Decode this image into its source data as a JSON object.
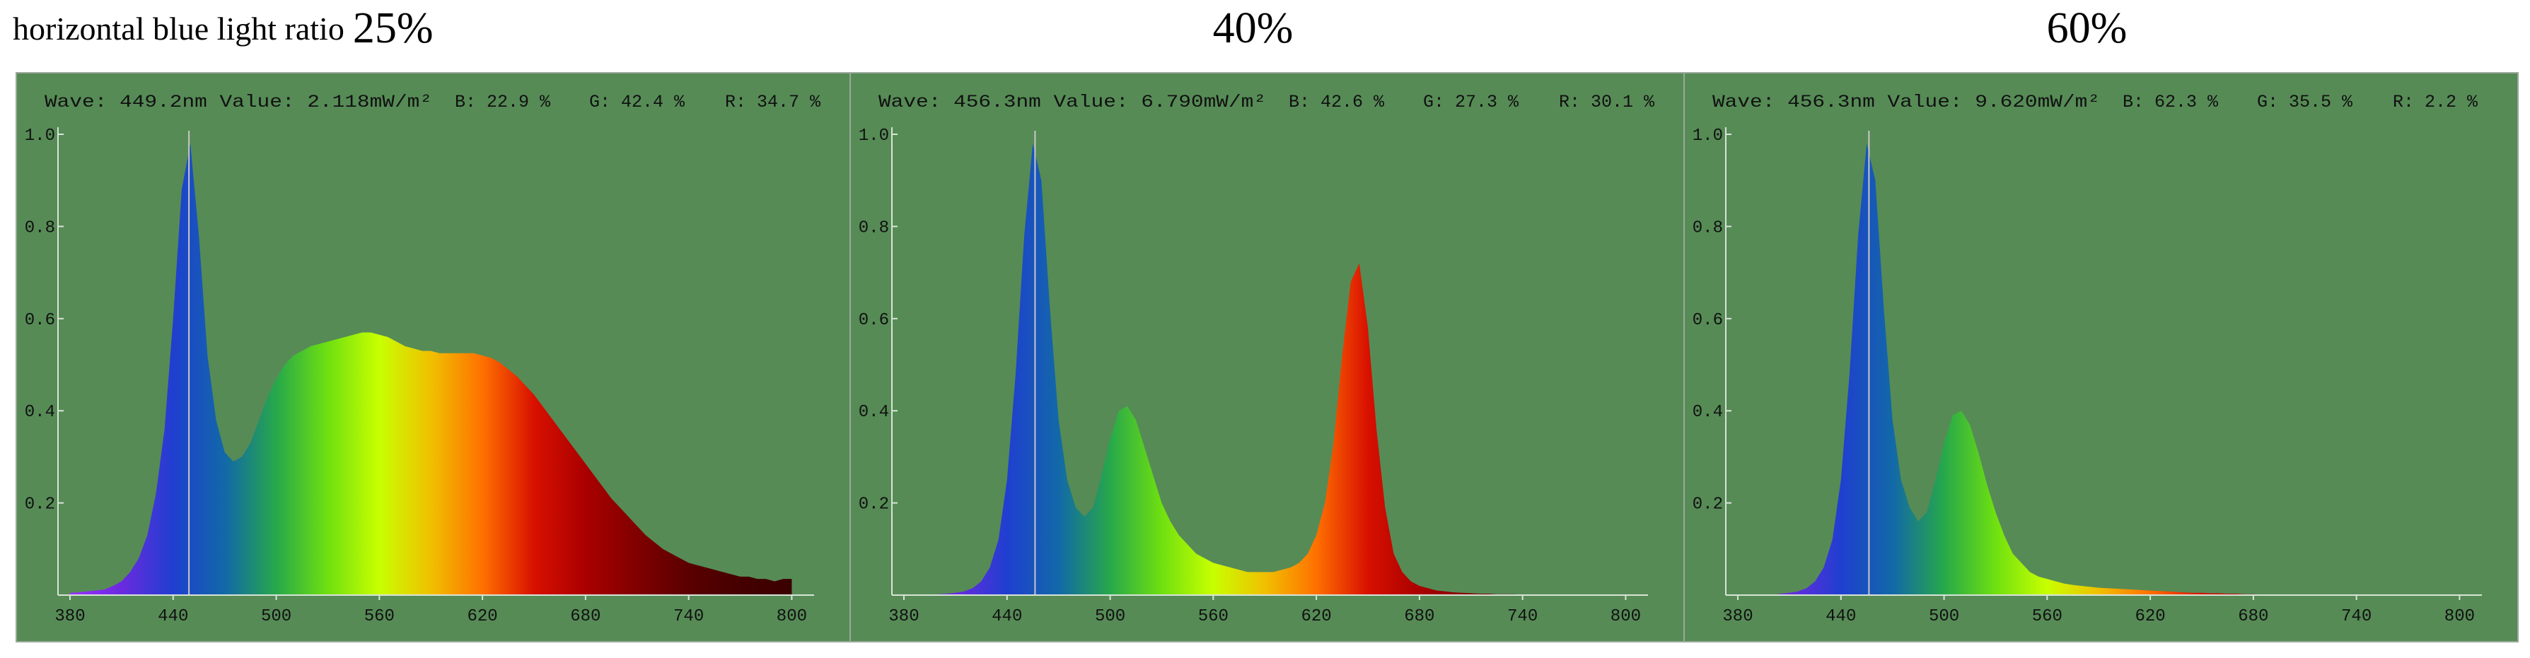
{
  "heading": "horizontal blue light ratio",
  "background": "#568b56",
  "axis_color": "#d8e4d8",
  "spectrum_colors": [
    "#9b30ff",
    "#6a2adf",
    "#1f3fd0",
    "#1268a8",
    "#27a84a",
    "#6fe010",
    "#c8ff00",
    "#f0c000",
    "#ff7000",
    "#d81000",
    "#aa0000",
    "#800000",
    "#5a0000",
    "#450000",
    "#3a0000"
  ],
  "chart_data": [
    {
      "type": "area",
      "title": "25%",
      "info": [
        "Wave: 449.2nm Value: 2.118mW/m²",
        "B: 22.9 %",
        "G: 42.4 %",
        "R: 34.7 %"
      ],
      "marker_x": 449.2,
      "xlim": [
        373,
        813
      ],
      "ylim": [
        0,
        1.0
      ],
      "xticks": [
        380,
        440,
        500,
        560,
        620,
        680,
        740,
        800
      ],
      "yticks": [
        0.2,
        0.4,
        0.6,
        0.8,
        {
          "value": 1,
          "label": "1.0"
        }
      ],
      "x": [
        380,
        385,
        390,
        395,
        400,
        405,
        410,
        415,
        420,
        425,
        430,
        435,
        440,
        445,
        450,
        455,
        460,
        465,
        470,
        475,
        480,
        485,
        490,
        495,
        500,
        505,
        510,
        515,
        520,
        525,
        530,
        535,
        540,
        545,
        550,
        555,
        560,
        565,
        570,
        575,
        580,
        585,
        590,
        595,
        600,
        605,
        610,
        615,
        620,
        625,
        630,
        635,
        640,
        645,
        650,
        655,
        660,
        665,
        670,
        675,
        680,
        685,
        690,
        695,
        700,
        705,
        710,
        715,
        720,
        725,
        730,
        735,
        740,
        745,
        750,
        755,
        760,
        765,
        770,
        775,
        780,
        785,
        790,
        795,
        800
      ],
      "values": [
        0.005,
        0.006,
        0.008,
        0.01,
        0.012,
        0.02,
        0.03,
        0.05,
        0.08,
        0.13,
        0.22,
        0.36,
        0.6,
        0.88,
        0.98,
        0.78,
        0.52,
        0.38,
        0.31,
        0.29,
        0.3,
        0.33,
        0.38,
        0.43,
        0.47,
        0.5,
        0.52,
        0.53,
        0.54,
        0.545,
        0.55,
        0.555,
        0.56,
        0.565,
        0.57,
        0.57,
        0.565,
        0.56,
        0.55,
        0.54,
        0.535,
        0.53,
        0.53,
        0.525,
        0.525,
        0.525,
        0.525,
        0.525,
        0.52,
        0.515,
        0.505,
        0.49,
        0.475,
        0.455,
        0.435,
        0.41,
        0.385,
        0.36,
        0.335,
        0.31,
        0.285,
        0.26,
        0.235,
        0.21,
        0.19,
        0.17,
        0.15,
        0.13,
        0.115,
        0.1,
        0.09,
        0.08,
        0.07,
        0.065,
        0.06,
        0.055,
        0.05,
        0.045,
        0.04,
        0.04,
        0.035,
        0.035,
        0.03,
        0.035,
        0.035
      ]
    },
    {
      "type": "area",
      "title": "40%",
      "info": [
        "Wave: 456.3nm Value: 6.790mW/m²",
        "B: 42.6 %",
        "G: 27.3 %",
        "R: 30.1 %"
      ],
      "marker_x": 456.3,
      "xlim": [
        373,
        813
      ],
      "ylim": [
        0,
        1.0
      ],
      "xticks": [
        380,
        440,
        500,
        560,
        620,
        680,
        740,
        800
      ],
      "yticks": [
        0.2,
        0.4,
        0.6,
        0.8,
        {
          "value": 1,
          "label": "1.0"
        }
      ],
      "x": [
        380,
        385,
        390,
        395,
        400,
        405,
        410,
        415,
        420,
        425,
        430,
        435,
        440,
        445,
        450,
        455,
        460,
        465,
        470,
        475,
        480,
        485,
        490,
        495,
        500,
        505,
        510,
        515,
        520,
        525,
        530,
        535,
        540,
        545,
        550,
        555,
        560,
        565,
        570,
        575,
        580,
        585,
        590,
        595,
        600,
        605,
        610,
        615,
        620,
        625,
        630,
        635,
        640,
        645,
        650,
        655,
        660,
        665,
        670,
        675,
        680,
        685,
        690,
        695,
        700,
        705,
        710,
        715,
        720,
        725,
        730,
        735,
        740,
        745,
        750,
        755,
        760,
        765,
        770,
        775,
        780,
        785,
        790,
        795,
        800
      ],
      "values": [
        0,
        0,
        0,
        0,
        0.002,
        0.003,
        0.005,
        0.008,
        0.015,
        0.03,
        0.06,
        0.12,
        0.25,
        0.48,
        0.78,
        0.98,
        0.9,
        0.62,
        0.38,
        0.25,
        0.19,
        0.17,
        0.19,
        0.26,
        0.34,
        0.4,
        0.41,
        0.38,
        0.32,
        0.26,
        0.2,
        0.16,
        0.13,
        0.11,
        0.09,
        0.08,
        0.07,
        0.065,
        0.06,
        0.055,
        0.05,
        0.05,
        0.05,
        0.05,
        0.055,
        0.06,
        0.07,
        0.09,
        0.13,
        0.2,
        0.33,
        0.52,
        0.68,
        0.72,
        0.58,
        0.36,
        0.19,
        0.09,
        0.05,
        0.03,
        0.02,
        0.015,
        0.01,
        0.008,
        0.006,
        0.005,
        0.004,
        0.003,
        0.003,
        0.002,
        0.002,
        0.002,
        0.001,
        0.001,
        0.001,
        0,
        0,
        0,
        0,
        0,
        0,
        0,
        0,
        0,
        0
      ]
    },
    {
      "type": "area",
      "title": "60%",
      "info": [
        "Wave: 456.3nm Value: 9.620mW/m²",
        "B: 62.3 %",
        "G: 35.5 %",
        "R: 2.2 %"
      ],
      "marker_x": 456.3,
      "xlim": [
        373,
        813
      ],
      "ylim": [
        0,
        1.0
      ],
      "xticks": [
        380,
        440,
        500,
        560,
        620,
        680,
        740,
        800
      ],
      "yticks": [
        0.2,
        0.4,
        0.6,
        0.8,
        {
          "value": 1,
          "label": "1.0"
        }
      ],
      "x": [
        380,
        385,
        390,
        395,
        400,
        405,
        410,
        415,
        420,
        425,
        430,
        435,
        440,
        445,
        450,
        455,
        460,
        465,
        470,
        475,
        480,
        485,
        490,
        495,
        500,
        505,
        510,
        515,
        520,
        525,
        530,
        535,
        540,
        545,
        550,
        555,
        560,
        565,
        570,
        575,
        580,
        585,
        590,
        595,
        600,
        605,
        610,
        615,
        620,
        625,
        630,
        635,
        640,
        645,
        650,
        655,
        660,
        665,
        670,
        675,
        680,
        685,
        690,
        695,
        700,
        705,
        710,
        715,
        720,
        725,
        730,
        735,
        740,
        745,
        750,
        755,
        760,
        765,
        770,
        775,
        780,
        785,
        790,
        795,
        800
      ],
      "values": [
        0,
        0,
        0,
        0,
        0,
        0.003,
        0.005,
        0.008,
        0.015,
        0.03,
        0.06,
        0.12,
        0.25,
        0.48,
        0.78,
        0.98,
        0.9,
        0.62,
        0.38,
        0.25,
        0.19,
        0.16,
        0.18,
        0.25,
        0.33,
        0.39,
        0.4,
        0.37,
        0.31,
        0.24,
        0.18,
        0.13,
        0.09,
        0.07,
        0.05,
        0.04,
        0.035,
        0.03,
        0.025,
        0.022,
        0.02,
        0.018,
        0.016,
        0.015,
        0.014,
        0.013,
        0.012,
        0.011,
        0.01,
        0.009,
        0.008,
        0.007,
        0.006,
        0.005,
        0.005,
        0.004,
        0.004,
        0.003,
        0.003,
        0.002,
        0.002,
        0.001,
        0.001,
        0.001,
        0.001,
        0,
        0,
        0,
        0,
        0,
        0,
        0,
        0,
        0,
        0,
        0,
        0,
        0,
        0,
        0,
        0,
        0,
        0,
        0,
        0
      ]
    }
  ]
}
